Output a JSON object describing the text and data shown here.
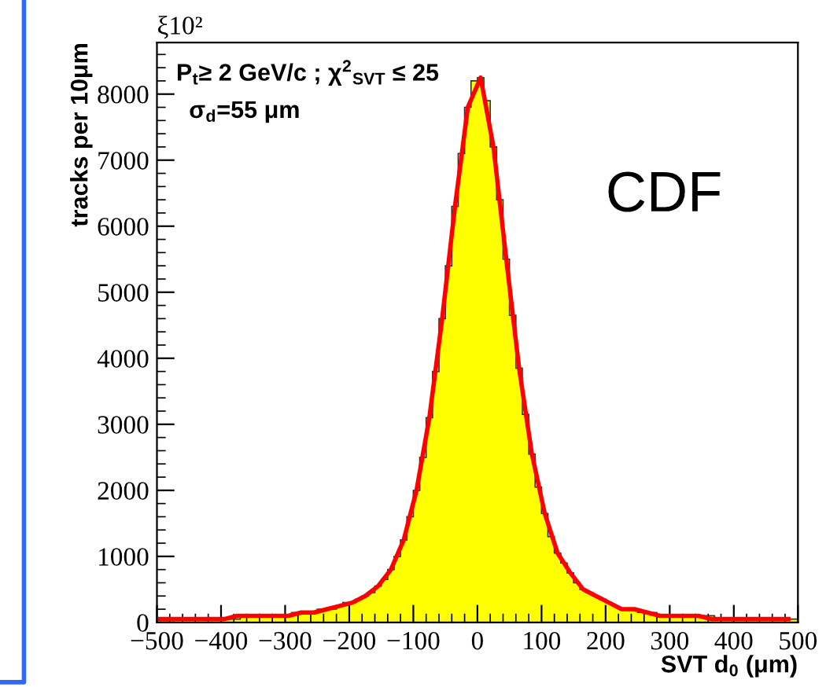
{
  "chart_data": {
    "type": "histogram",
    "xlabel": "SVT d$_{0}$ (μm)",
    "ylabel": "tracks per 10μm",
    "annotations": [
      "ξ10²",
      "P$_{t}$≥ 2 GeV/c ; χ$^{2}$$_{SVT}$ ≤ 25",
      "σ$_{d}$=55 μm",
      "CDF"
    ],
    "xlim": [
      -500,
      500
    ],
    "ylim": [
      0,
      8780
    ],
    "xticks": [
      {
        "value": -500,
        "label": "−500"
      },
      {
        "value": -400,
        "label": "−400"
      },
      {
        "value": -300,
        "label": "−300"
      },
      {
        "value": -200,
        "label": "−200"
      },
      {
        "value": -100,
        "label": "−100"
      },
      0,
      100,
      200,
      300,
      400,
      500
    ],
    "yticks": [
      0,
      1000,
      2000,
      3000,
      4000,
      5000,
      6000,
      7000,
      8000
    ],
    "grid": false,
    "series": [
      {
        "color": "#ffff00",
        "bins": [
          -500,
          -490,
          -480,
          -470,
          -460,
          -450,
          -440,
          -430,
          -420,
          -410,
          -400,
          -390,
          -380,
          -370,
          -360,
          -350,
          -340,
          -330,
          -320,
          -310,
          -300,
          -290,
          -280,
          -270,
          -260,
          -250,
          -240,
          -230,
          -220,
          -210,
          -200,
          -190,
          -180,
          -170,
          -160,
          -150,
          -140,
          -130,
          -120,
          -110,
          -100,
          -90,
          -80,
          -70,
          -60,
          -50,
          -40,
          -30,
          -20,
          -10,
          0,
          10,
          20,
          30,
          40,
          50,
          60,
          70,
          80,
          90,
          100,
          110,
          120,
          130,
          140,
          150,
          160,
          170,
          180,
          190,
          200,
          210,
          220,
          230,
          240,
          250,
          260,
          270,
          280,
          290,
          300,
          310,
          320,
          330,
          340,
          350,
          360,
          370,
          380,
          390,
          400,
          410,
          420,
          430,
          440,
          450,
          460,
          470,
          480,
          490,
          500
        ],
        "values": [
          50,
          50,
          50,
          50,
          50,
          50,
          50,
          50,
          50,
          50,
          50,
          50,
          50,
          100,
          100,
          100,
          100,
          100,
          100,
          100,
          100,
          150,
          150,
          150,
          150,
          200,
          200,
          200,
          250,
          300,
          300,
          350,
          400,
          450,
          550,
          650,
          800,
          1000,
          1250,
          1600,
          2000,
          2500,
          3100,
          3800,
          4600,
          5400,
          6300,
          7100,
          7800,
          8200,
          8250,
          7900,
          7200,
          6400,
          5500,
          4650,
          3850,
          3150,
          2550,
          2050,
          1650,
          1300,
          1050,
          900,
          750,
          600,
          500,
          450,
          400,
          350,
          300,
          250,
          200,
          200,
          200,
          150,
          150,
          150,
          100,
          100,
          100,
          100,
          100,
          100,
          100,
          100,
          100,
          50,
          50,
          50,
          50,
          50,
          50,
          50,
          50,
          50,
          50,
          50,
          50,
          50
        ]
      },
      {
        "type": "line",
        "color": "#ff0000",
        "x": [
          -495,
          -475,
          -455,
          -435,
          -415,
          -395,
          -375,
          -355,
          -335,
          -315,
          -295,
          -275,
          -255,
          -235,
          -215,
          -195,
          -175,
          -155,
          -135,
          -115,
          -95,
          -75,
          -55,
          -35,
          -15,
          5,
          25,
          45,
          65,
          85,
          105,
          125,
          145,
          165,
          185,
          205,
          225,
          245,
          265,
          285,
          305,
          325,
          345,
          365,
          385,
          405,
          425,
          445,
          465,
          485
        ],
        "values": [
          50,
          50,
          50,
          50,
          50,
          50,
          100,
          100,
          100,
          100,
          100,
          150,
          150,
          200,
          250,
          300,
          400,
          550,
          800,
          1250,
          2000,
          3100,
          4600,
          6300,
          7800,
          8250,
          7200,
          5500,
          3850,
          2550,
          1650,
          1050,
          750,
          500,
          400,
          300,
          200,
          200,
          150,
          100,
          100,
          100,
          100,
          50,
          50,
          50,
          50,
          50,
          50,
          50
        ]
      }
    ]
  }
}
